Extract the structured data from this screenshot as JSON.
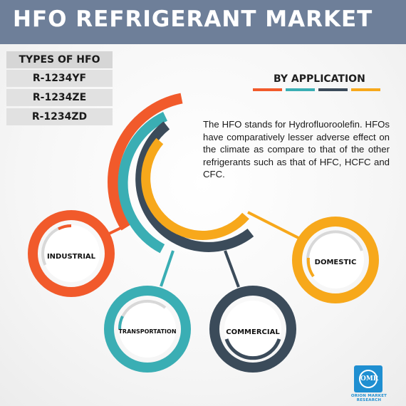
{
  "title": "HFO REFRIGERANT MARKET",
  "types": {
    "heading": "TYPES OF HFO",
    "items": [
      "R-1234YF",
      "R-1234ZE",
      "R-1234ZD"
    ]
  },
  "by_application": "BY APPLICATION",
  "description": "The HFO stands for Hydrofluoroolefin. HFOs have comparatively lesser adverse effect on the climate as compare to that of the other refrigerants such as that of HFC, HCFC and CFC.",
  "applications": [
    {
      "label": "INDUSTRIAL",
      "color": "#f15a2b"
    },
    {
      "label": "TRANSPORTATION",
      "color": "#3aaeb4"
    },
    {
      "label": "COMMERCIAL",
      "color": "#3b4b5a"
    },
    {
      "label": "DOMESTIC",
      "color": "#f7a81b"
    }
  ],
  "colors": {
    "orange": "#f15a2b",
    "teal": "#3aaeb4",
    "navy": "#3b4b5a",
    "yellow": "#f7a81b",
    "title_bar": "#6e7f99"
  },
  "logo": {
    "mark": "OMR",
    "text": "ORION MARKET RESEARCH"
  }
}
